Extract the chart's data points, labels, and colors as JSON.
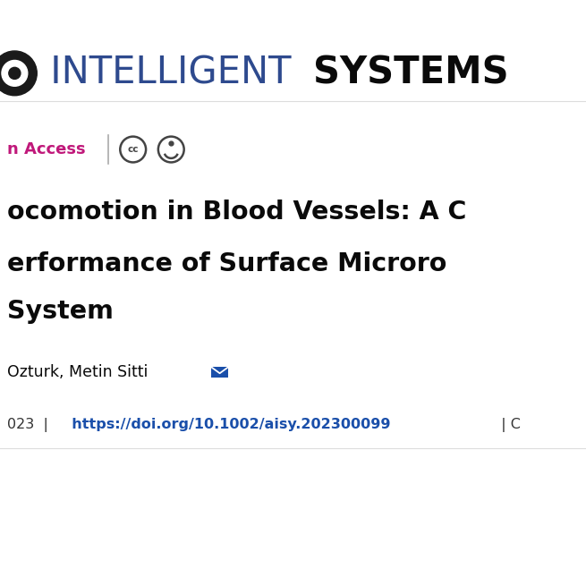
{
  "background_color": "#ffffff",
  "journal_name_light": " INTELLIGENT ",
  "journal_name_bold": "SYSTEMS",
  "journal_name_color_light": "#2e4a8e",
  "journal_name_color_bold": "#0a0a0a",
  "journal_logo_color": "#1a1a1a",
  "open_access_text": "n Access",
  "open_access_color": "#c0187a",
  "title_line1": "ocomotion in Blood Vessels: A C",
  "title_line2": "erformance of Surface Microro",
  "title_line3": "System",
  "title_color": "#0a0a0a",
  "author_text": "Ozturk, Metin Sitti",
  "author_color": "#0a0a0a",
  "doi_year": "023  |",
  "doi_link": "  https://doi.org/10.1002/aisy.202300099",
  "doi_suffix": "  | C",
  "doi_color": "#1a4faa",
  "doi_text_color": "#333333",
  "separator_color": "#aaaaaa",
  "icon_color": "#444444",
  "divider_color": "#dddddd",
  "fig_width": 6.55,
  "fig_height": 6.55,
  "dpi": 100
}
